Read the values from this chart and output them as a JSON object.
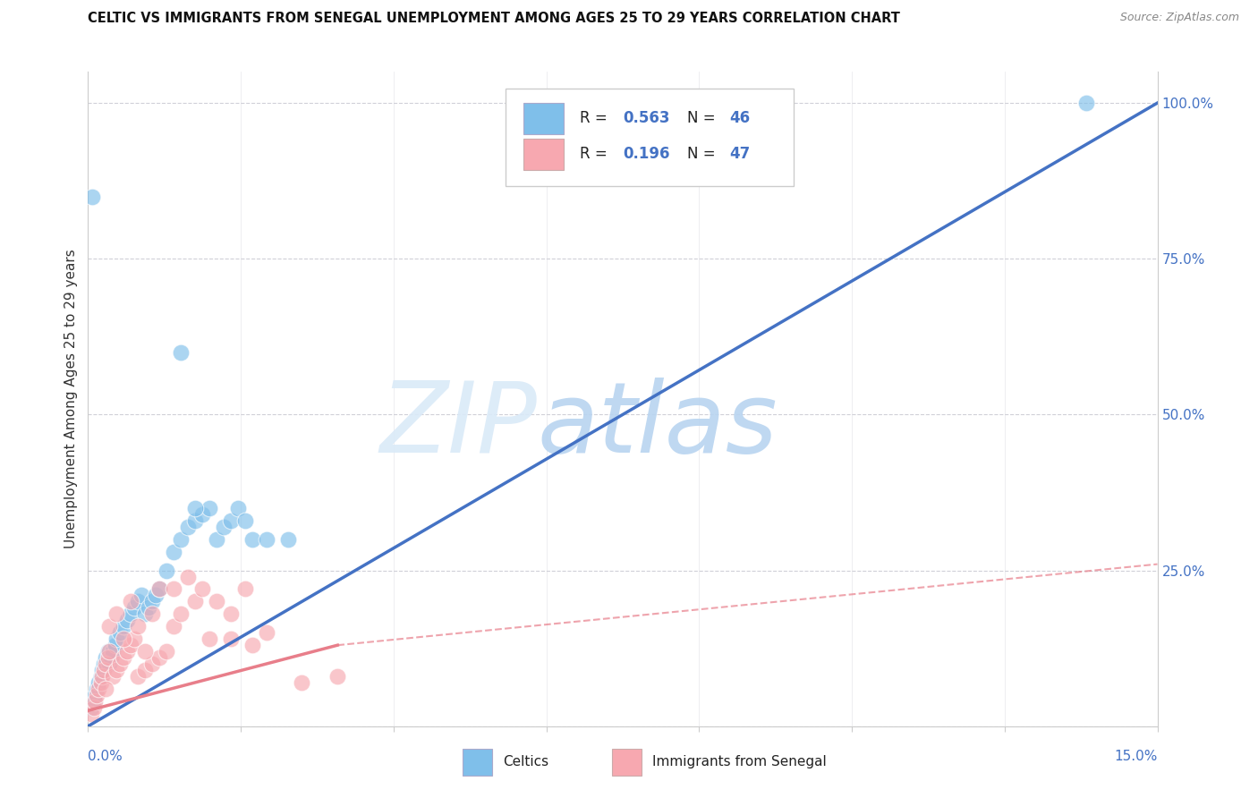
{
  "title": "CELTIC VS IMMIGRANTS FROM SENEGAL UNEMPLOYMENT AMONG AGES 25 TO 29 YEARS CORRELATION CHART",
  "source": "Source: ZipAtlas.com",
  "ylabel": "Unemployment Among Ages 25 to 29 years",
  "xlim": [
    0.0,
    15.0
  ],
  "ylim": [
    0.0,
    105.0
  ],
  "yticks": [
    0,
    25,
    50,
    75,
    100
  ],
  "ytick_labels": [
    "",
    "25.0%",
    "50.0%",
    "75.0%",
    "100.0%"
  ],
  "xtick_positions": [
    0.0,
    2.142857,
    4.285714,
    6.428571,
    8.571429,
    10.714286,
    12.857143,
    15.0
  ],
  "blue_color": "#7fbfea",
  "pink_color": "#f7a8b0",
  "blue_line_color": "#4472c4",
  "pink_line_color": "#e87e8a",
  "blue_reg_x0": 0.0,
  "blue_reg_y0": 0.0,
  "blue_reg_x1": 15.0,
  "blue_reg_y1": 100.0,
  "pink_solid_x0": 0.0,
  "pink_solid_y0": 2.5,
  "pink_solid_x1": 3.5,
  "pink_solid_y1": 13.0,
  "pink_dash_x0": 3.5,
  "pink_dash_y0": 13.0,
  "pink_dash_x1": 15.0,
  "pink_dash_y1": 26.0,
  "blue_scatter_x": [
    0.05,
    0.08,
    0.1,
    0.12,
    0.15,
    0.18,
    0.2,
    0.22,
    0.25,
    0.28,
    0.3,
    0.32,
    0.35,
    0.38,
    0.4,
    0.45,
    0.5,
    0.55,
    0.6,
    0.65,
    0.7,
    0.75,
    0.8,
    0.85,
    0.9,
    0.95,
    1.0,
    1.1,
    1.2,
    1.3,
    1.4,
    1.5,
    1.6,
    1.7,
    1.8,
    1.9,
    2.0,
    2.1,
    2.2,
    2.3,
    2.5,
    2.8,
    1.3,
    1.5,
    14.0,
    0.06
  ],
  "blue_scatter_y": [
    3,
    4,
    5,
    6,
    7,
    8,
    9,
    10,
    11,
    12,
    10,
    11,
    12,
    13,
    14,
    15,
    16,
    17,
    18,
    19,
    20,
    21,
    18,
    19,
    20,
    21,
    22,
    25,
    28,
    30,
    32,
    33,
    34,
    35,
    30,
    32,
    33,
    35,
    33,
    30,
    30,
    30,
    60,
    35,
    100,
    85
  ],
  "pink_scatter_x": [
    0.05,
    0.08,
    0.1,
    0.12,
    0.15,
    0.18,
    0.2,
    0.22,
    0.25,
    0.28,
    0.3,
    0.35,
    0.4,
    0.45,
    0.5,
    0.55,
    0.6,
    0.65,
    0.7,
    0.8,
    0.9,
    1.0,
    1.1,
    1.2,
    1.3,
    1.5,
    1.7,
    1.8,
    2.0,
    2.2,
    2.5,
    0.3,
    0.4,
    0.5,
    0.6,
    0.7,
    0.8,
    0.9,
    1.0,
    1.2,
    1.4,
    1.6,
    2.0,
    2.3,
    3.0,
    3.5,
    0.25
  ],
  "pink_scatter_y": [
    2,
    3,
    4,
    5,
    6,
    7,
    8,
    9,
    10,
    11,
    12,
    8,
    9,
    10,
    11,
    12,
    13,
    14,
    8,
    9,
    10,
    11,
    12,
    16,
    18,
    20,
    14,
    20,
    18,
    22,
    15,
    16,
    18,
    14,
    20,
    16,
    12,
    18,
    22,
    22,
    24,
    22,
    14,
    13,
    7,
    8,
    6
  ]
}
